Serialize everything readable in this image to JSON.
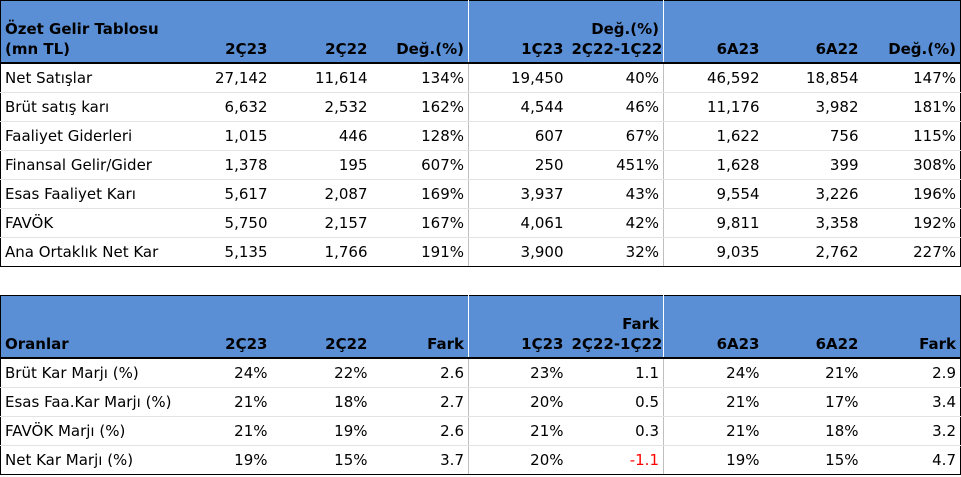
{
  "income": {
    "title_line1": "Özet Gelir Tablosu",
    "title_line2": "(mn TL)",
    "headers": {
      "c1": "2Ç23",
      "c2": "2Ç22",
      "c3": "Değ.(%)",
      "c4": "1Ç23",
      "c5_line1": "Değ.(%)",
      "c5_line2": "2Ç22-1Ç22",
      "c6": "6A23",
      "c7": "6A22",
      "c8": "Değ.(%)"
    },
    "rows": [
      {
        "label": "Net Satışlar",
        "v1": "27,142",
        "v2": "11,614",
        "v3": "134%",
        "v4": "19,450",
        "v5": "40%",
        "v6": "46,592",
        "v7": "18,854",
        "v8": "147%"
      },
      {
        "label": "Brüt satış karı",
        "v1": "6,632",
        "v2": "2,532",
        "v3": "162%",
        "v4": "4,544",
        "v5": "46%",
        "v6": "11,176",
        "v7": "3,982",
        "v8": "181%"
      },
      {
        "label": "Faaliyet Giderleri",
        "v1": "1,015",
        "v2": "446",
        "v3": "128%",
        "v4": "607",
        "v5": "67%",
        "v6": "1,622",
        "v7": "756",
        "v8": "115%"
      },
      {
        "label": "Finansal Gelir/Gider",
        "v1": "1,378",
        "v2": "195",
        "v3": "607%",
        "v4": "250",
        "v5": "451%",
        "v6": "1,628",
        "v7": "399",
        "v8": "308%"
      },
      {
        "label": "Esas Faaliyet Karı",
        "v1": "5,617",
        "v2": "2,087",
        "v3": "169%",
        "v4": "3,937",
        "v5": "43%",
        "v6": "9,554",
        "v7": "3,226",
        "v8": "196%"
      },
      {
        "label": "FAVÖK",
        "v1": "5,750",
        "v2": "2,157",
        "v3": "167%",
        "v4": "4,061",
        "v5": "42%",
        "v6": "9,811",
        "v7": "3,358",
        "v8": "192%"
      },
      {
        "label": "Ana Ortaklık Net Kar",
        "v1": "5,135",
        "v2": "1,766",
        "v3": "191%",
        "v4": "3,900",
        "v5": "32%",
        "v6": "9,035",
        "v7": "2,762",
        "v8": "227%"
      }
    ]
  },
  "ratios": {
    "title": "Oranlar",
    "headers": {
      "c1": "2Ç23",
      "c2": "2Ç22",
      "c3": "Fark",
      "c4": "1Ç23",
      "c5_line1": "Fark",
      "c5_line2": "2Ç22-1Ç22",
      "c6": "6A23",
      "c7": "6A22",
      "c8": "Fark"
    },
    "rows": [
      {
        "label": "Brüt Kar Marjı (%)",
        "v1": "24%",
        "v2": "22%",
        "v3": "2.6",
        "v4": "23%",
        "v5": "1.1",
        "v6": "24%",
        "v7": "21%",
        "v8": "2.9"
      },
      {
        "label": "Esas Faa.Kar Marjı (%)",
        "v1": "21%",
        "v2": "18%",
        "v3": "2.7",
        "v4": "20%",
        "v5": "0.5",
        "v6": "21%",
        "v7": "17%",
        "v8": "3.4"
      },
      {
        "label": "FAVÖK Marjı (%)",
        "v1": "21%",
        "v2": "19%",
        "v3": "2.6",
        "v4": "21%",
        "v5": "0.3",
        "v6": "21%",
        "v7": "18%",
        "v8": "3.2"
      },
      {
        "label": "Net Kar Marjı (%)",
        "v1": "19%",
        "v2": "15%",
        "v3": "3.7",
        "v4": "20%",
        "v5": "-1.1",
        "v6": "19%",
        "v7": "15%",
        "v8": "4.7"
      }
    ]
  },
  "colors": {
    "header_bg": "#5b8fd5",
    "negative": "#ff0000"
  }
}
